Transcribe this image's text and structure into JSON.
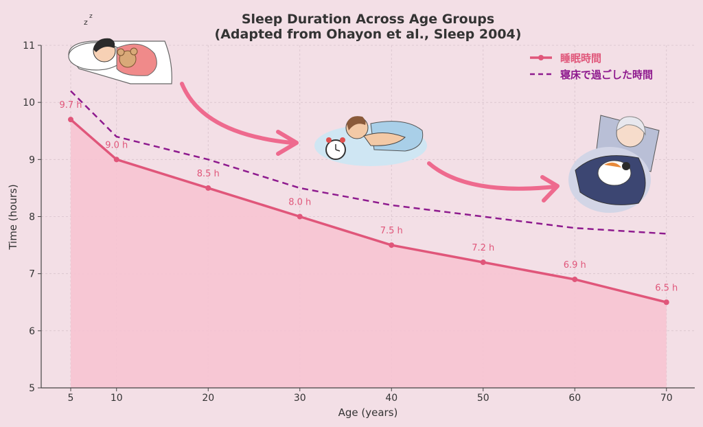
{
  "chart_data": {
    "type": "line",
    "title": "Sleep Duration Across Age Groups",
    "subtitle": "(Adapted from Ohayon et al., Sleep 2004)",
    "xlabel": "Age (years)",
    "ylabel": "Time (hours)",
    "xlim": [
      2,
      73
    ],
    "ylim": [
      5,
      11
    ],
    "xticks": [
      "5",
      "10",
      "20",
      "30",
      "40",
      "50",
      "60",
      "70"
    ],
    "yticks": [
      "5",
      "6",
      "7",
      "8",
      "9",
      "10",
      "11"
    ],
    "x": [
      5,
      10,
      20,
      30,
      40,
      50,
      60,
      70
    ],
    "grid": true,
    "legend_position": "top-right",
    "series": [
      {
        "name": "睡眠時間",
        "values": [
          9.7,
          9.0,
          8.5,
          8.0,
          7.5,
          7.2,
          6.9,
          6.5
        ],
        "labels": [
          "9.7 h",
          "9.0 h",
          "8.5 h",
          "8.0 h",
          "7.5 h",
          "7.2 h",
          "6.9 h",
          "6.5 h"
        ],
        "color": "#e0567a",
        "style": "solid-with-markers",
        "fill": "#f7c4d2"
      },
      {
        "name": "寝床で過ごした時間",
        "values": [
          10.2,
          9.4,
          9.0,
          8.5,
          8.2,
          8.0,
          7.8,
          7.7
        ],
        "color": "#8e1a8e",
        "style": "dashed"
      }
    ]
  },
  "illustrations": [
    {
      "icon": "sleeping-child-with-teddy-icon"
    },
    {
      "icon": "sleeping-adult-with-alarm-clock-icon"
    },
    {
      "icon": "sleeping-elderly-woman-with-cat-icon"
    }
  ],
  "colors": {
    "background": "#f3dfe6",
    "arrow": "#ee6a8e"
  }
}
